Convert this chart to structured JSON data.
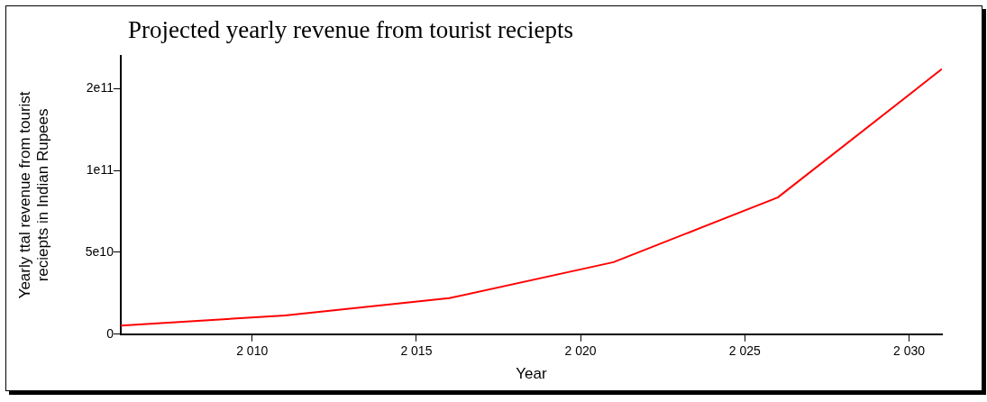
{
  "chart_data": {
    "type": "line",
    "title": "Projected yearly revenue from tourist reciepts",
    "xlabel": "Year",
    "ylabel": "Yearly ttal revenue from tourist reciepts in Indian Rupees",
    "x": [
      2006,
      2011,
      2016,
      2021,
      2026,
      2031
    ],
    "series": [
      {
        "color": "#ff0000",
        "values": [
          5300000000.0,
          11400000000.0,
          22000000000.0,
          44000000000.0,
          83500000000.0,
          162000000000.0
        ]
      }
    ],
    "xlim": [
      2006,
      2031
    ],
    "xticks": [
      {
        "value": 2010,
        "label": "2 010"
      },
      {
        "value": 2015,
        "label": "2 015"
      },
      {
        "value": 2020,
        "label": "2 020"
      },
      {
        "value": 2025,
        "label": "2 025"
      },
      {
        "value": 2030,
        "label": "2 030"
      }
    ],
    "ylim": [
      0,
      170000000000.0
    ],
    "yticks": [
      {
        "value": 0,
        "label": "0"
      },
      {
        "value": 50000000000.0,
        "label": "5e10"
      },
      {
        "value": 100000000000.0,
        "label": "1e11"
      },
      {
        "value": 150000000000.0,
        "label": "2e11"
      }
    ],
    "grid": false,
    "legend": false,
    "marker": "none",
    "line_style": "solid"
  }
}
